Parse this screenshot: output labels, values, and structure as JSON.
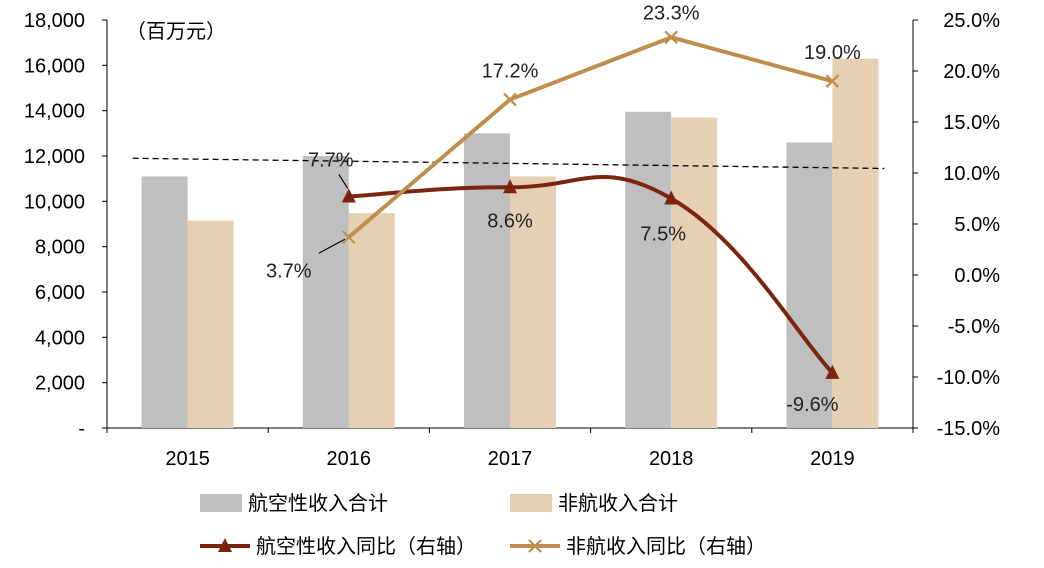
{
  "chart_data": {
    "type": "bar",
    "categories": [
      "2015",
      "2016",
      "2017",
      "2018",
      "2019"
    ],
    "unit_label": "（百万元）",
    "left_axis": {
      "min": 0,
      "max": 18000,
      "step": 2000,
      "tick_labels": [
        "-",
        "2,000",
        "4,000",
        "6,000",
        "8,000",
        "10,000",
        "12,000",
        "14,000",
        "16,000",
        "18,000"
      ]
    },
    "right_axis": {
      "min": -15,
      "max": 25,
      "step": 5,
      "tick_labels": [
        "-15.0%",
        "-10.0%",
        "-5.0%",
        "0.0%",
        "5.0%",
        "10.0%",
        "15.0%",
        "20.0%",
        "25.0%"
      ]
    },
    "series": [
      {
        "name": "航空性收入合计",
        "kind": "bar",
        "axis": "left",
        "color": "#BFBFBF",
        "values": [
          11100,
          12000,
          13000,
          13950,
          12600
        ]
      },
      {
        "name": "非航收入合计",
        "kind": "bar",
        "axis": "left",
        "color": "#E6D0B4",
        "values": [
          9150,
          9480,
          11100,
          13700,
          16300
        ]
      },
      {
        "name": "航空性收入同比（右轴",
        "legend_label": "航空性收入同比（右轴）",
        "kind": "line",
        "axis": "right",
        "color": "#7B2410",
        "marker": "triangle",
        "values": [
          null,
          7.7,
          8.6,
          7.5,
          -9.6
        ],
        "labels": [
          null,
          "7.7%",
          "8.6%",
          "7.5%",
          "-9.6%"
        ]
      },
      {
        "name": "非航收入同比（右轴",
        "legend_label": "非航收入同比（右轴）",
        "kind": "line",
        "axis": "right",
        "color": "#BE8F4C",
        "marker": "x",
        "values": [
          null,
          3.7,
          17.2,
          23.3,
          19.0
        ],
        "labels": [
          null,
          "3.7%",
          "17.2%",
          "23.3%",
          "19.0%"
        ]
      }
    ],
    "reference_line": {
      "style": "dashed",
      "color": "#000000",
      "from": {
        "x": "2015",
        "y": 11900
      },
      "to": {
        "x": "2019",
        "y": 11450
      }
    },
    "grid": false,
    "legend_position": "bottom"
  }
}
